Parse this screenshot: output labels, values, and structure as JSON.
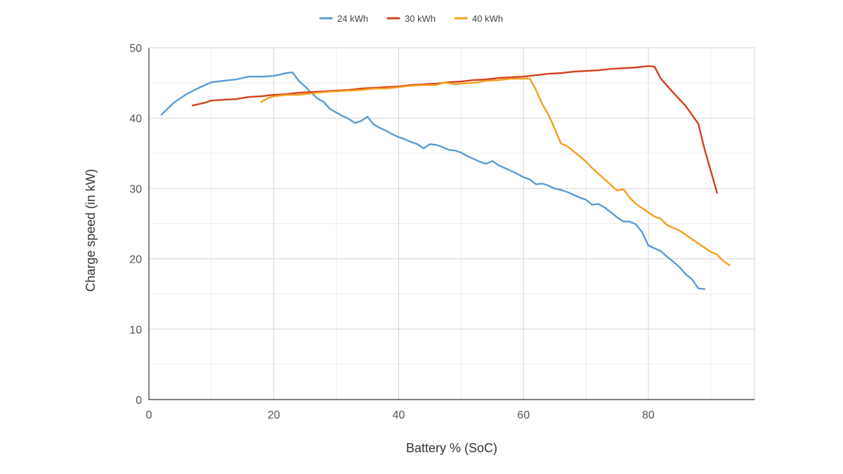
{
  "chart_data": {
    "type": "line",
    "title": "",
    "xlabel": "Battery % (SoC)",
    "ylabel": "Charge speed (in kW)",
    "xlim": [
      0,
      97
    ],
    "ylim": [
      0,
      50
    ],
    "xticks": [
      0,
      20,
      40,
      60,
      80
    ],
    "yticks": [
      0,
      10,
      20,
      30,
      40,
      50
    ],
    "grid": true,
    "legend_position": "top-center",
    "series": [
      {
        "name": "24 kWh",
        "color": "#5B9BD5",
        "points": [
          [
            2,
            40.5
          ],
          [
            4,
            42.2
          ],
          [
            6,
            43.4
          ],
          [
            8,
            44.3
          ],
          [
            10,
            45.1
          ],
          [
            12,
            45.3
          ],
          [
            14,
            45.5
          ],
          [
            16,
            45.9
          ],
          [
            18,
            45.9
          ],
          [
            20,
            46.0
          ],
          [
            22,
            46.4
          ],
          [
            23,
            46.5
          ],
          [
            24,
            45.3
          ],
          [
            25,
            44.5
          ],
          [
            26,
            43.6
          ],
          [
            27,
            42.8
          ],
          [
            28,
            42.3
          ],
          [
            29,
            41.3
          ],
          [
            30,
            40.8
          ],
          [
            31,
            40.3
          ],
          [
            32,
            39.9
          ],
          [
            33,
            39.3
          ],
          [
            34,
            39.6
          ],
          [
            35,
            40.2
          ],
          [
            36,
            39.1
          ],
          [
            37,
            38.6
          ],
          [
            38,
            38.2
          ],
          [
            39,
            37.7
          ],
          [
            40,
            37.3
          ],
          [
            41,
            37.0
          ],
          [
            42,
            36.6
          ],
          [
            43,
            36.3
          ],
          [
            44,
            35.7
          ],
          [
            45,
            36.3
          ],
          [
            46,
            36.2
          ],
          [
            47,
            35.9
          ],
          [
            48,
            35.5
          ],
          [
            49,
            35.4
          ],
          [
            50,
            35.1
          ],
          [
            51,
            34.6
          ],
          [
            52,
            34.2
          ],
          [
            53,
            33.8
          ],
          [
            54,
            33.5
          ],
          [
            55,
            33.9
          ],
          [
            56,
            33.3
          ],
          [
            57,
            32.9
          ],
          [
            58,
            32.5
          ],
          [
            59,
            32.1
          ],
          [
            60,
            31.6
          ],
          [
            61,
            31.3
          ],
          [
            62,
            30.6
          ],
          [
            63,
            30.7
          ],
          [
            64,
            30.4
          ],
          [
            65,
            30.0
          ],
          [
            66,
            29.8
          ],
          [
            67,
            29.5
          ],
          [
            68,
            29.1
          ],
          [
            69,
            28.7
          ],
          [
            70,
            28.4
          ],
          [
            71,
            27.7
          ],
          [
            72,
            27.8
          ],
          [
            73,
            27.3
          ],
          [
            74,
            26.6
          ],
          [
            75,
            25.9
          ],
          [
            76,
            25.3
          ],
          [
            77,
            25.3
          ],
          [
            78,
            24.9
          ],
          [
            79,
            23.8
          ],
          [
            80,
            21.9
          ],
          [
            81,
            21.5
          ],
          [
            82,
            21.1
          ],
          [
            83,
            20.3
          ],
          [
            84,
            19.6
          ],
          [
            85,
            18.8
          ],
          [
            86,
            17.8
          ],
          [
            87,
            17.1
          ],
          [
            88,
            15.8
          ],
          [
            89,
            15.7
          ]
        ]
      },
      {
        "name": "30 kWh",
        "color": "#D4401E",
        "points": [
          [
            7,
            41.8
          ],
          [
            9,
            42.2
          ],
          [
            10,
            42.5
          ],
          [
            12,
            42.6
          ],
          [
            14,
            42.7
          ],
          [
            16,
            43.0
          ],
          [
            18,
            43.1
          ],
          [
            20,
            43.3
          ],
          [
            22,
            43.4
          ],
          [
            24,
            43.6
          ],
          [
            26,
            43.7
          ],
          [
            28,
            43.8
          ],
          [
            30,
            43.9
          ],
          [
            32,
            44.0
          ],
          [
            34,
            44.2
          ],
          [
            36,
            44.3
          ],
          [
            38,
            44.4
          ],
          [
            40,
            44.5
          ],
          [
            42,
            44.7
          ],
          [
            44,
            44.8
          ],
          [
            46,
            44.9
          ],
          [
            48,
            45.1
          ],
          [
            50,
            45.2
          ],
          [
            52,
            45.4
          ],
          [
            54,
            45.5
          ],
          [
            56,
            45.7
          ],
          [
            58,
            45.8
          ],
          [
            60,
            45.9
          ],
          [
            62,
            46.1
          ],
          [
            64,
            46.3
          ],
          [
            66,
            46.4
          ],
          [
            68,
            46.6
          ],
          [
            70,
            46.7
          ],
          [
            72,
            46.8
          ],
          [
            74,
            47.0
          ],
          [
            76,
            47.1
          ],
          [
            78,
            47.2
          ],
          [
            80,
            47.4
          ],
          [
            81,
            47.3
          ],
          [
            82,
            45.6
          ],
          [
            84,
            43.6
          ],
          [
            86,
            41.7
          ],
          [
            88,
            39.2
          ],
          [
            89,
            35.6
          ],
          [
            91,
            29.4
          ]
        ]
      },
      {
        "name": "40 kWh",
        "color": "#F59E1B",
        "points": [
          [
            18,
            42.3
          ],
          [
            19,
            42.8
          ],
          [
            20,
            43.1
          ],
          [
            22,
            43.3
          ],
          [
            24,
            43.3
          ],
          [
            26,
            43.5
          ],
          [
            28,
            43.7
          ],
          [
            30,
            43.8
          ],
          [
            32,
            43.9
          ],
          [
            34,
            44.0
          ],
          [
            36,
            44.2
          ],
          [
            38,
            44.2
          ],
          [
            40,
            44.4
          ],
          [
            42,
            44.6
          ],
          [
            44,
            44.7
          ],
          [
            46,
            44.7
          ],
          [
            47,
            45.0
          ],
          [
            48,
            45.0
          ],
          [
            49,
            44.8
          ],
          [
            50,
            44.9
          ],
          [
            52,
            45.0
          ],
          [
            54,
            45.3
          ],
          [
            56,
            45.4
          ],
          [
            58,
            45.6
          ],
          [
            60,
            45.6
          ],
          [
            61,
            45.6
          ],
          [
            62,
            44.0
          ],
          [
            63,
            42.0
          ],
          [
            64,
            40.5
          ],
          [
            65,
            38.5
          ],
          [
            66,
            36.4
          ],
          [
            67,
            36.0
          ],
          [
            68,
            35.3
          ],
          [
            69,
            34.6
          ],
          [
            70,
            33.8
          ],
          [
            71,
            32.9
          ],
          [
            72,
            32.1
          ],
          [
            73,
            31.3
          ],
          [
            74,
            30.5
          ],
          [
            75,
            29.7
          ],
          [
            76,
            29.9
          ],
          [
            77,
            28.7
          ],
          [
            78,
            27.8
          ],
          [
            79,
            27.2
          ],
          [
            80,
            26.6
          ],
          [
            81,
            26.0
          ],
          [
            82,
            25.7
          ],
          [
            83,
            24.8
          ],
          [
            84,
            24.4
          ],
          [
            85,
            24.0
          ],
          [
            86,
            23.4
          ],
          [
            87,
            22.8
          ],
          [
            88,
            22.2
          ],
          [
            89,
            21.6
          ],
          [
            90,
            21.0
          ],
          [
            91,
            20.6
          ],
          [
            92,
            19.7
          ],
          [
            93,
            19.1
          ]
        ]
      }
    ]
  }
}
